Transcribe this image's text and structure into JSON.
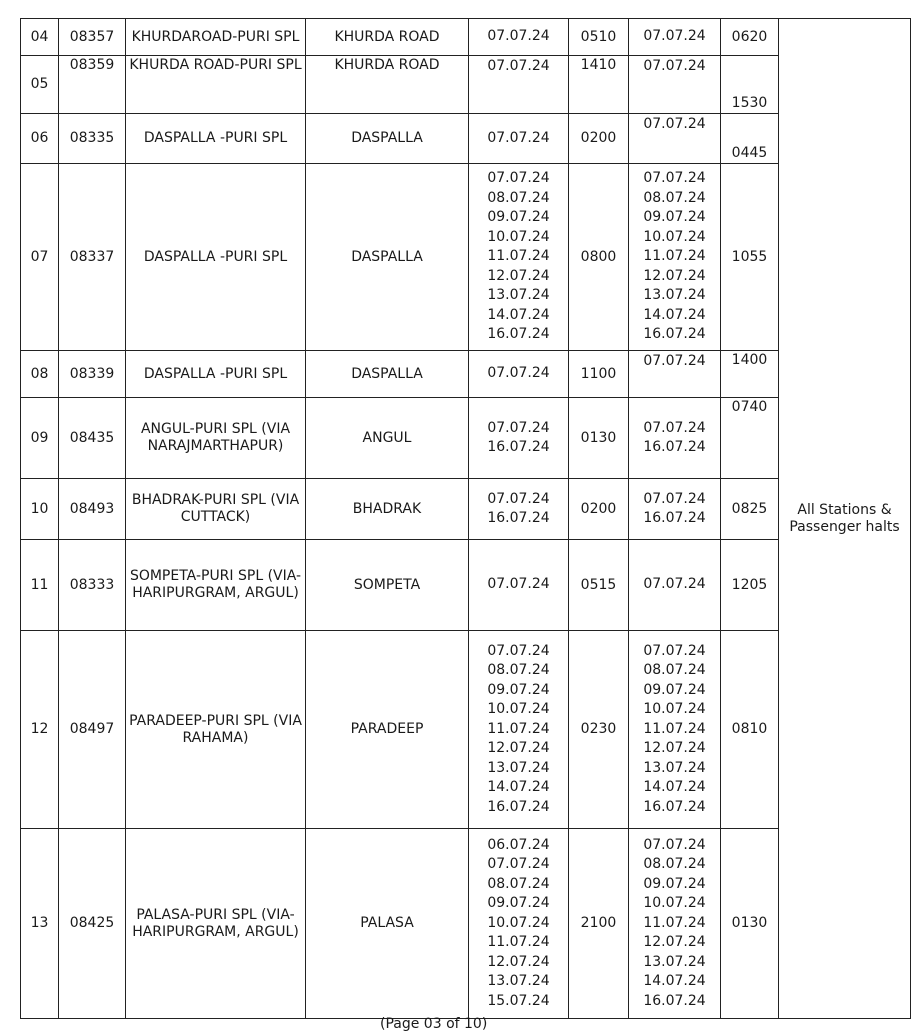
{
  "remarks": "All Stations & Passenger halts",
  "rows": [
    {
      "sl": "04",
      "train_no": "08357",
      "name": "KHURDAROAD-PURI SPL",
      "origin": "KHURDA ROAD",
      "dep_dates": [
        "07.07.24"
      ],
      "dep_time": "0510",
      "arr_dates": [
        "07.07.24"
      ],
      "arr_time": "0620"
    },
    {
      "sl": "05",
      "train_no": "08359",
      "name": "KHURDA ROAD-PURI SPL",
      "origin": "KHURDA ROAD",
      "dep_dates": [
        "07.07.24"
      ],
      "dep_time": "1410",
      "arr_dates": [
        "07.07.24"
      ],
      "arr_time": "1530"
    },
    {
      "sl": "06",
      "train_no": "08335",
      "name": "DASPALLA -PURI SPL",
      "origin": "DASPALLA",
      "dep_dates": [
        "07.07.24"
      ],
      "dep_time": "0200",
      "arr_dates": [
        "07.07.24"
      ],
      "arr_time": "0445"
    },
    {
      "sl": "07",
      "train_no": "08337",
      "name": "DASPALLA -PURI SPL",
      "origin": "DASPALLA",
      "dep_dates": [
        "07.07.24",
        "08.07.24",
        "09.07.24",
        "10.07.24",
        "11.07.24",
        "12.07.24",
        "13.07.24",
        "14.07.24",
        "16.07.24"
      ],
      "dep_time": "0800",
      "arr_dates": [
        "07.07.24",
        "08.07.24",
        "09.07.24",
        "10.07.24",
        "11.07.24",
        "12.07.24",
        "13.07.24",
        "14.07.24",
        "16.07.24"
      ],
      "arr_time": "1055"
    },
    {
      "sl": "08",
      "train_no": "08339",
      "name": "DASPALLA -PURI SPL",
      "origin": "DASPALLA",
      "dep_dates": [
        "07.07.24"
      ],
      "dep_time": "1100",
      "arr_dates": [
        "07.07.24"
      ],
      "arr_time": "1400"
    },
    {
      "sl": "09",
      "train_no": "08435",
      "name": "ANGUL-PURI SPL (VIA NARAJMARTHAPUR)",
      "origin": "ANGUL",
      "dep_dates": [
        "07.07.24",
        "16.07.24"
      ],
      "dep_time": "0130",
      "arr_dates": [
        "07.07.24",
        "16.07.24"
      ],
      "arr_time": "0740"
    },
    {
      "sl": "10",
      "train_no": "08493",
      "name": "BHADRAK-PURI SPL (VIA CUTTACK)",
      "origin": "BHADRAK",
      "dep_dates": [
        "07.07.24",
        "16.07.24"
      ],
      "dep_time": "0200",
      "arr_dates": [
        "07.07.24",
        "16.07.24"
      ],
      "arr_time": "0825"
    },
    {
      "sl": "11",
      "train_no": "08333",
      "name": "SOMPETA-PURI SPL (VIA-HARIPURGRAM, ARGUL)",
      "origin": "SOMPETA",
      "dep_dates": [
        "07.07.24"
      ],
      "dep_time": "0515",
      "arr_dates": [
        "07.07.24"
      ],
      "arr_time": "1205"
    },
    {
      "sl": "12",
      "train_no": "08497",
      "name": "PARADEEP-PURI SPL (VIA RAHAMA)",
      "origin": "PARADEEP",
      "dep_dates": [
        "07.07.24",
        "08.07.24",
        "09.07.24",
        "10.07.24",
        "11.07.24",
        "12.07.24",
        "13.07.24",
        "14.07.24",
        "16.07.24"
      ],
      "dep_time": "0230",
      "arr_dates": [
        "07.07.24",
        "08.07.24",
        "09.07.24",
        "10.07.24",
        "11.07.24",
        "12.07.24",
        "13.07.24",
        "14.07.24",
        "16.07.24"
      ],
      "arr_time": "0810"
    },
    {
      "sl": "13",
      "train_no": "08425",
      "name": "PALASA-PURI SPL (VIA-HARIPURGRAM, ARGUL)",
      "origin": "PALASA",
      "dep_dates": [
        "06.07.24",
        "07.07.24",
        "08.07.24",
        "09.07.24",
        "10.07.24",
        "11.07.24",
        "12.07.24",
        "13.07.24",
        "15.07.24"
      ],
      "dep_time": "2100",
      "arr_dates": [
        "07.07.24",
        "08.07.24",
        "09.07.24",
        "10.07.24",
        "11.07.24",
        "12.07.24",
        "13.07.24",
        "14.07.24",
        "16.07.24"
      ],
      "arr_time": "0130"
    }
  ],
  "footer": "(Page 03 of 10)"
}
